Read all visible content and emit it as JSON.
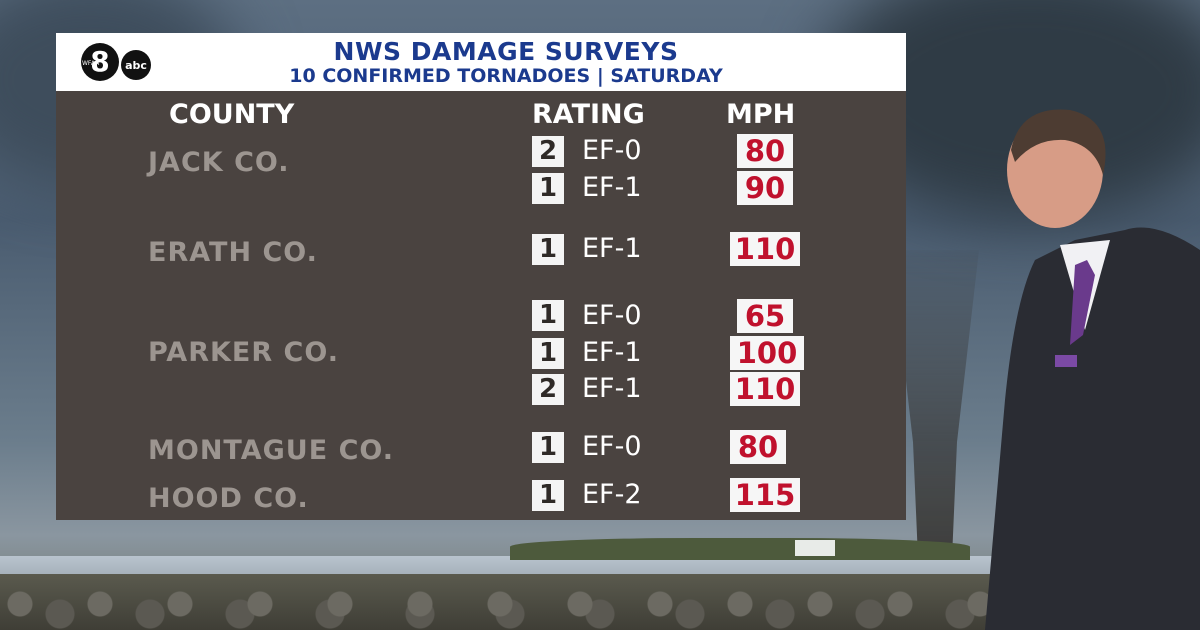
{
  "colors": {
    "panel_bg": "#4a4340",
    "title_blue": "#1b3a8e",
    "mph_red": "#c0112d",
    "county_gray": "#9c9590"
  },
  "logo": {
    "station": "WFAA",
    "channel": "8",
    "network": "abc"
  },
  "title": {
    "line1": "NWS DAMAGE SURVEYS",
    "line2": "10 CONFIRMED TORNADOES | SATURDAY"
  },
  "columns": {
    "county": "COUNTY",
    "rating": "RATING",
    "mph": "MPH"
  },
  "counties": [
    "JACK CO.",
    "ERATH CO.",
    "PARKER CO.",
    "MONTAGUE CO.",
    "HOOD CO."
  ],
  "rows": [
    {
      "county": "JACK CO.",
      "count": "2",
      "rating": "EF-0",
      "mph": "80"
    },
    {
      "county": "JACK CO.",
      "count": "1",
      "rating": "EF-1",
      "mph": "90"
    },
    {
      "county": "ERATH CO.",
      "count": "1",
      "rating": "EF-1",
      "mph": "110"
    },
    {
      "county": "PARKER CO.",
      "count": "1",
      "rating": "EF-0",
      "mph": "65"
    },
    {
      "county": "PARKER CO.",
      "count": "1",
      "rating": "EF-1",
      "mph": "100"
    },
    {
      "county": "PARKER CO.",
      "count": "2",
      "rating": "EF-1",
      "mph": "110"
    },
    {
      "county": "MONTAGUE CO.",
      "count": "1",
      "rating": "EF-0",
      "mph": "80"
    },
    {
      "county": "HOOD CO.",
      "count": "1",
      "rating": "EF-2",
      "mph": "115"
    }
  ]
}
